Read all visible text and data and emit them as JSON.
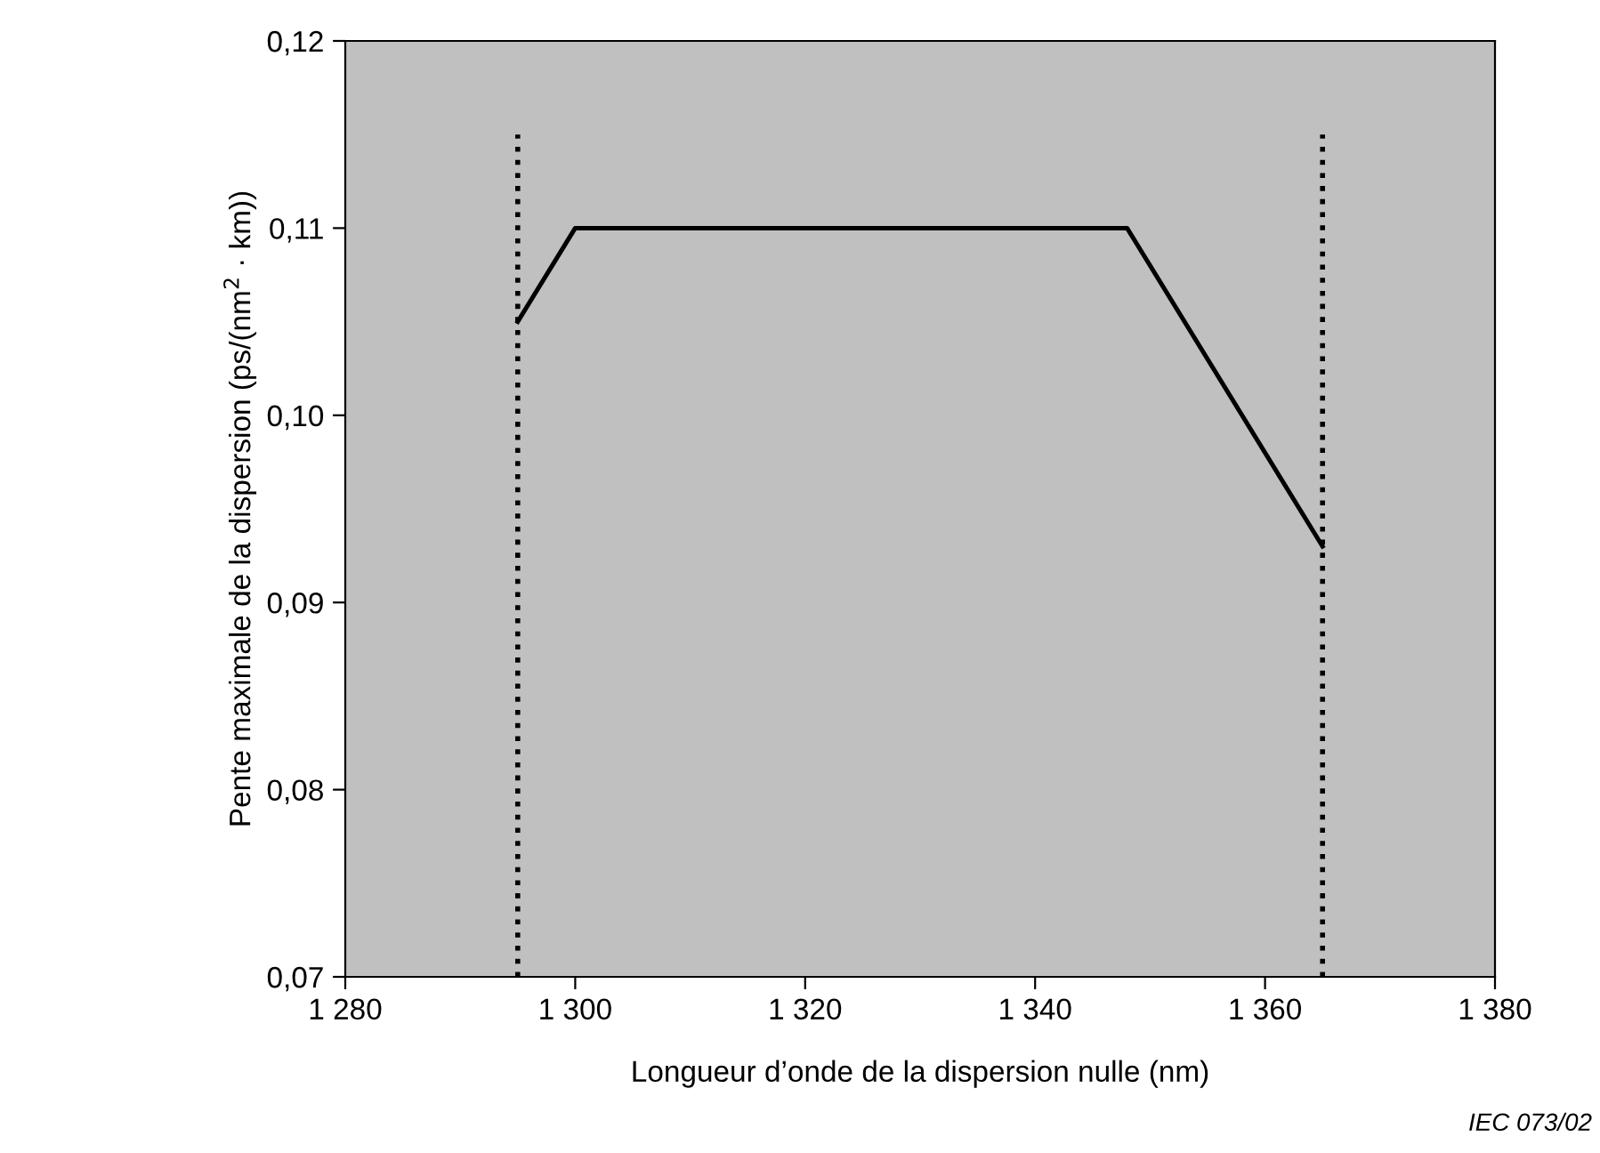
{
  "chart_data": {
    "type": "line",
    "xlabel": "Longueur d’onde de la dispersion nulle (nm)",
    "ylabel": "Pente maximale de la dispersion (ps/(nm$^{2}$ · km))",
    "annotations": [
      "IEC 073/02"
    ],
    "series": [
      {
        "color": "#000000",
        "x": [
          1295,
          1300,
          1348,
          1365
        ],
        "values": [
          0.105,
          0.11,
          0.11,
          0.093
        ],
        "line_style": "solid"
      },
      {
        "color": "#000000",
        "x": [
          1295,
          1295
        ],
        "values": [
          0.07,
          0.115
        ],
        "line_style": "dotted"
      },
      {
        "color": "#000000",
        "x": [
          1365,
          1365
        ],
        "values": [
          0.07,
          0.115
        ],
        "line_style": "dotted"
      }
    ],
    "xlim": [
      1280,
      1380
    ],
    "xticks": [
      {
        "value": 1280,
        "label": "1 280"
      },
      {
        "value": 1300,
        "label": "1 300"
      },
      {
        "value": 1320,
        "label": "1 320"
      },
      {
        "value": 1340,
        "label": "1 340"
      },
      {
        "value": 1360,
        "label": "1 360"
      },
      {
        "value": 1380,
        "label": "1 380"
      }
    ],
    "ylim": [
      0.07,
      0.12
    ],
    "yticks": [
      {
        "value": 0.07,
        "label": "0,07"
      },
      {
        "value": 0.08,
        "label": "0,08"
      },
      {
        "value": 0.09,
        "label": "0,09"
      },
      {
        "value": 0.1,
        "label": "0,10"
      },
      {
        "value": 0.11,
        "label": "0,11"
      },
      {
        "value": 0.12,
        "label": "0,12"
      }
    ],
    "grid": false,
    "legend": false,
    "marker": "none"
  }
}
